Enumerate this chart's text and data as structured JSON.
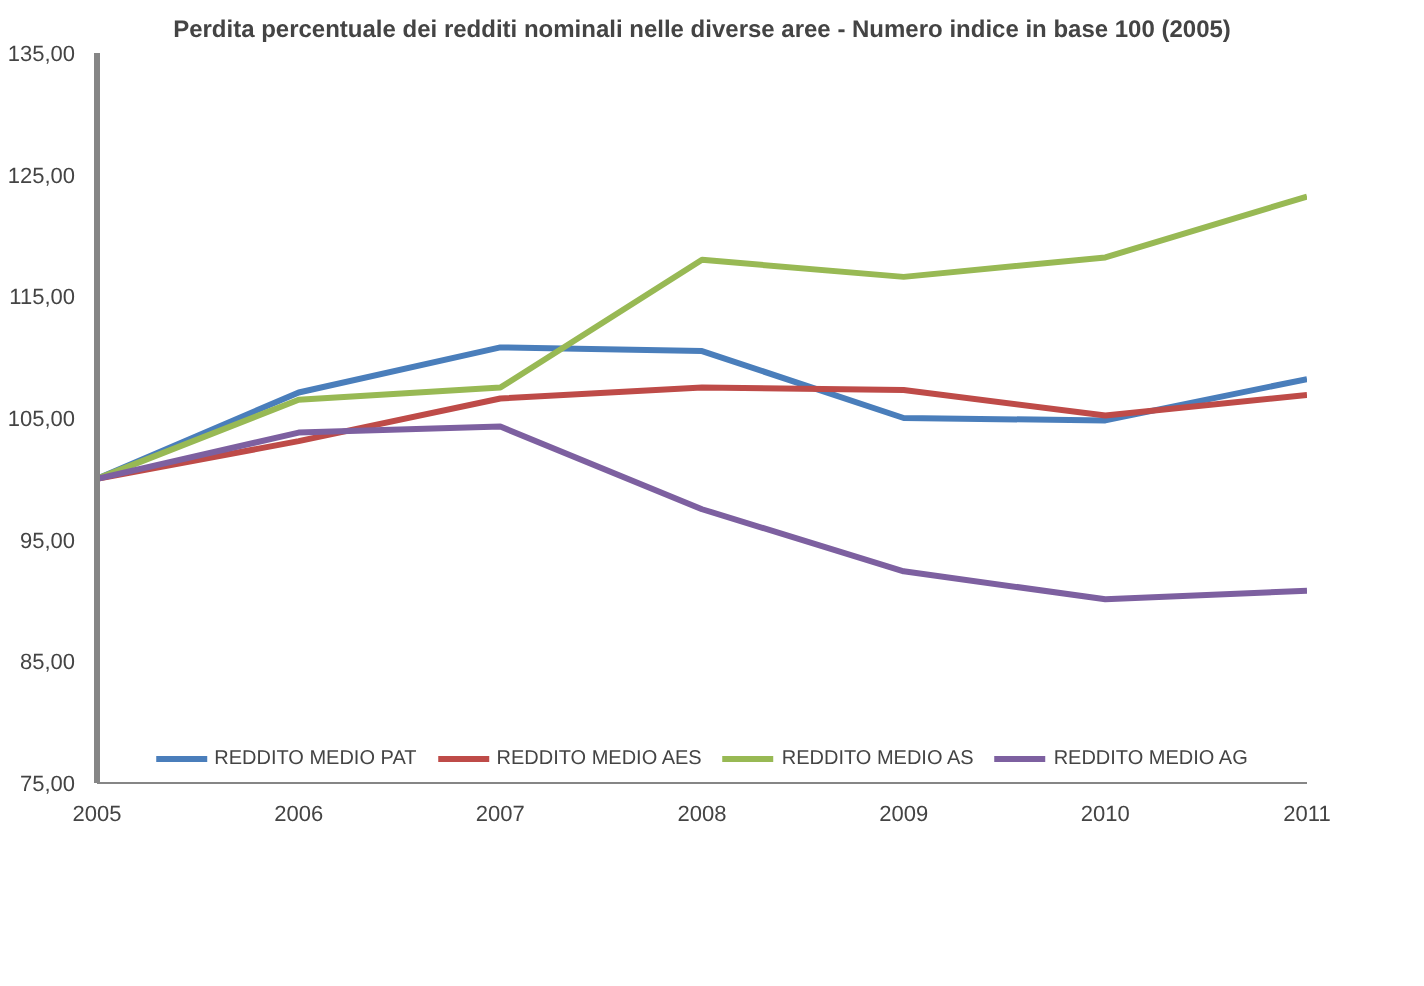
{
  "chart_data": {
    "type": "line",
    "title": "Perdita percentuale dei redditi nominali nelle diverse aree - Numero indice in base 100 (2005)",
    "x": [
      2005,
      2006,
      2007,
      2008,
      2009,
      2010,
      2011
    ],
    "series": [
      {
        "name": "REDDITO MEDIO PAT",
        "color": "#4a7ebb",
        "values": [
          100,
          107.1,
          110.8,
          110.5,
          105.0,
          104.8,
          108.2
        ]
      },
      {
        "name": "REDDITO MEDIO AES",
        "color": "#be4b48",
        "values": [
          100,
          103.1,
          106.6,
          107.5,
          107.3,
          105.2,
          106.9
        ]
      },
      {
        "name": "REDDITO MEDIO AS",
        "color": "#98b954",
        "values": [
          100,
          106.5,
          107.5,
          118.0,
          116.6,
          118.2,
          123.2
        ]
      },
      {
        "name": "REDDITO MEDIO AG",
        "color": "#7d60a0",
        "values": [
          100,
          103.8,
          104.3,
          97.5,
          92.4,
          90.1,
          90.8
        ]
      }
    ],
    "xlim": [
      2005,
      2011
    ],
    "xticks": [
      2005,
      2006,
      2007,
      2008,
      2009,
      2010,
      2011
    ],
    "ylim": [
      75,
      135
    ],
    "yticks": [
      {
        "value": 75,
        "label": "75,00"
      },
      {
        "value": 85,
        "label": "85,00"
      },
      {
        "value": 95,
        "label": "95,00"
      },
      {
        "value": 105,
        "label": "105,00"
      },
      {
        "value": 115,
        "label": "115,00"
      },
      {
        "value": 125,
        "label": "125,00"
      },
      {
        "value": 135,
        "label": "135,00"
      }
    ],
    "grid": false,
    "legend": "bottom",
    "line_style": "solid",
    "marker": "none"
  }
}
